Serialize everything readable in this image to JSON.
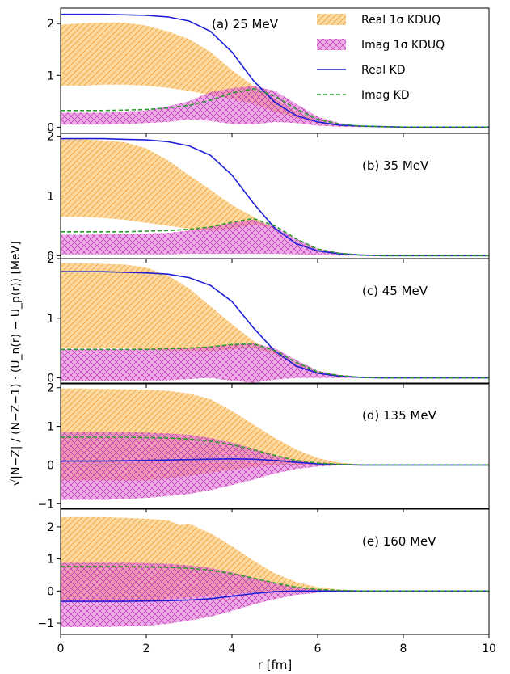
{
  "figure": {
    "xlabel": "r [fm]",
    "ylabel": "√|N−Z| / (N−Z−1) · (U_n(r) − U_p(r)) [MeV]",
    "legend": {
      "placement": "top-right of panel (a)",
      "entries": [
        {
          "label": "Real 1σ KDUQ",
          "style": "band",
          "color": "#fdb94d",
          "hatch": "//"
        },
        {
          "label": "Imag 1σ KDUQ",
          "style": "band",
          "color": "#e36ad8",
          "hatch": "xx"
        },
        {
          "label": "Real  KD",
          "style": "solid",
          "color": "#1f1fd6"
        },
        {
          "label": "Imag KD",
          "style": "dashed",
          "color": "#2a9a2a"
        }
      ]
    },
    "colors": {
      "real_band": "#fdb94d",
      "imag_band": "#e36ad8",
      "real_kd": "#1f1fd6",
      "imag_kd": "#2a9a2a"
    }
  },
  "chart_data": [
    {
      "type": "line",
      "panel_label": "(a) 25 MeV",
      "xlim": [
        0,
        10
      ],
      "ylim": [
        -0.12,
        2.3
      ],
      "yticks": [
        0,
        1,
        2
      ],
      "xticks": [
        0,
        2,
        4,
        6,
        8,
        10
      ],
      "real_band": {
        "x": [
          0,
          0.5,
          1,
          1.5,
          2,
          2.5,
          3,
          3.5,
          4,
          4.5,
          5,
          5.5,
          6,
          6.5,
          7,
          7.5,
          8,
          9,
          10
        ],
        "lower": [
          0.8,
          0.8,
          0.82,
          0.82,
          0.8,
          0.76,
          0.7,
          0.62,
          0.55,
          0.45,
          0.3,
          0.18,
          0.08,
          0.04,
          0.02,
          0.01,
          0,
          0,
          0
        ],
        "upper": [
          1.98,
          2.01,
          2.02,
          2.02,
          1.96,
          1.85,
          1.7,
          1.45,
          1.1,
          0.8,
          0.55,
          0.3,
          0.12,
          0.05,
          0.02,
          0.01,
          0,
          0,
          0
        ]
      },
      "imag_band": {
        "x": [
          0,
          0.5,
          1,
          1.5,
          2,
          2.5,
          3,
          3.5,
          4,
          4.5,
          5,
          5.5,
          6,
          6.5,
          7,
          7.5,
          8,
          9,
          10
        ],
        "lower": [
          0.05,
          0.05,
          0.05,
          0.06,
          0.08,
          0.1,
          0.15,
          0.12,
          0.06,
          0.05,
          0.1,
          0.08,
          0.03,
          0.01,
          0,
          0,
          0,
          0,
          0
        ],
        "upper": [
          0.28,
          0.28,
          0.28,
          0.3,
          0.32,
          0.4,
          0.5,
          0.68,
          0.75,
          0.8,
          0.7,
          0.45,
          0.2,
          0.08,
          0.02,
          0.01,
          0,
          0,
          0
        ]
      },
      "real_kd": {
        "x": [
          0,
          0.5,
          1,
          1.5,
          2,
          2.5,
          3,
          3.5,
          4,
          4.5,
          5,
          5.5,
          6,
          6.5,
          7,
          7.5,
          8,
          9,
          10
        ],
        "y": [
          2.18,
          2.18,
          2.18,
          2.17,
          2.16,
          2.13,
          2.05,
          1.85,
          1.45,
          0.9,
          0.48,
          0.22,
          0.1,
          0.04,
          0.02,
          0.01,
          0,
          0,
          0
        ]
      },
      "imag_kd": {
        "x": [
          0,
          0.5,
          1,
          1.5,
          2,
          2.5,
          3,
          3.5,
          4,
          4.5,
          5,
          5.5,
          6,
          6.5,
          7,
          7.5,
          8,
          9,
          10
        ],
        "y": [
          0.32,
          0.32,
          0.32,
          0.33,
          0.34,
          0.37,
          0.42,
          0.52,
          0.66,
          0.74,
          0.6,
          0.35,
          0.15,
          0.06,
          0.02,
          0.01,
          0,
          0,
          0
        ]
      }
    },
    {
      "type": "line",
      "panel_label": "(b) 35 MeV",
      "xlim": [
        0,
        10
      ],
      "ylim": [
        -0.05,
        2.05
      ],
      "yticks": [
        0,
        1,
        2
      ],
      "xticks": [
        0,
        2,
        4,
        6,
        8,
        10
      ],
      "real_band": {
        "x": [
          0,
          0.5,
          1,
          1.5,
          2,
          2.5,
          3,
          3.5,
          4,
          4.5,
          5,
          5.5,
          6,
          6.5,
          7,
          7.5,
          8,
          9,
          10
        ],
        "lower": [
          0.65,
          0.65,
          0.63,
          0.6,
          0.55,
          0.5,
          0.45,
          0.42,
          0.45,
          0.52,
          0.45,
          0.25,
          0.1,
          0.04,
          0.02,
          0.01,
          0,
          0,
          0
        ],
        "upper": [
          1.95,
          1.95,
          1.93,
          1.9,
          1.8,
          1.6,
          1.35,
          1.1,
          0.85,
          0.65,
          0.45,
          0.25,
          0.1,
          0.04,
          0.02,
          0.01,
          0,
          0,
          0
        ]
      },
      "imag_band": {
        "x": [
          0,
          0.5,
          1,
          1.5,
          2,
          2.5,
          3,
          3.5,
          4,
          4.5,
          5,
          5.5,
          6,
          6.5,
          7,
          7.5,
          8,
          9,
          10
        ],
        "lower": [
          0.02,
          0.02,
          0.02,
          0.02,
          0.02,
          0.02,
          0.03,
          0.03,
          0.03,
          0.03,
          0.03,
          0.02,
          0.01,
          0,
          0,
          0,
          0,
          0,
          0
        ],
        "upper": [
          0.35,
          0.35,
          0.36,
          0.36,
          0.37,
          0.38,
          0.42,
          0.48,
          0.55,
          0.6,
          0.48,
          0.28,
          0.12,
          0.05,
          0.02,
          0.01,
          0,
          0,
          0
        ]
      },
      "real_kd": {
        "x": [
          0,
          0.5,
          1,
          1.5,
          2,
          2.5,
          3,
          3.5,
          4,
          4.5,
          5,
          5.5,
          6,
          6.5,
          7,
          7.5,
          8,
          9,
          10
        ],
        "y": [
          1.96,
          1.96,
          1.96,
          1.95,
          1.94,
          1.91,
          1.84,
          1.68,
          1.35,
          0.88,
          0.46,
          0.2,
          0.08,
          0.03,
          0.01,
          0,
          0,
          0,
          0
        ]
      },
      "imag_kd": {
        "x": [
          0,
          0.5,
          1,
          1.5,
          2,
          2.5,
          3,
          3.5,
          4,
          4.5,
          5,
          5.5,
          6,
          6.5,
          7,
          7.5,
          8,
          9,
          10
        ],
        "y": [
          0.4,
          0.4,
          0.4,
          0.4,
          0.41,
          0.42,
          0.44,
          0.48,
          0.56,
          0.62,
          0.5,
          0.28,
          0.11,
          0.04,
          0.01,
          0,
          0,
          0,
          0
        ]
      }
    },
    {
      "type": "line",
      "panel_label": "(c) 45 MeV",
      "xlim": [
        0,
        10
      ],
      "ylim": [
        -0.1,
        2.0
      ],
      "yticks": [
        0,
        1,
        2
      ],
      "xticks": [
        0,
        2,
        4,
        6,
        8,
        10
      ],
      "real_band": {
        "x": [
          0,
          0.5,
          1,
          1.5,
          2,
          2.5,
          3,
          3.5,
          4,
          4.5,
          5,
          5.5,
          6,
          6.5,
          7,
          7.5,
          8,
          9,
          10
        ],
        "lower": [
          0.5,
          0.5,
          0.5,
          0.5,
          0.48,
          0.46,
          0.45,
          0.45,
          0.48,
          0.5,
          0.4,
          0.22,
          0.09,
          0.04,
          0.02,
          0.01,
          0,
          0,
          0
        ],
        "upper": [
          1.92,
          1.92,
          1.91,
          1.9,
          1.85,
          1.72,
          1.5,
          1.2,
          0.9,
          0.62,
          0.42,
          0.25,
          0.1,
          0.04,
          0.02,
          0.01,
          0,
          0,
          0
        ]
      },
      "imag_band": {
        "x": [
          0,
          0.5,
          1,
          1.5,
          2,
          2.5,
          3,
          3.5,
          4,
          4.5,
          5,
          5.5,
          6,
          6.5,
          7,
          7.5,
          8,
          9,
          10
        ],
        "lower": [
          -0.05,
          -0.05,
          -0.05,
          -0.05,
          -0.05,
          -0.04,
          -0.02,
          0,
          -0.05,
          -0.08,
          -0.03,
          0,
          0,
          0,
          0,
          0,
          0,
          0,
          0
        ],
        "upper": [
          0.48,
          0.48,
          0.48,
          0.48,
          0.48,
          0.49,
          0.5,
          0.53,
          0.56,
          0.58,
          0.5,
          0.3,
          0.12,
          0.05,
          0.02,
          0.01,
          0,
          0,
          0
        ]
      },
      "real_kd": {
        "x": [
          0,
          0.5,
          1,
          1.5,
          2,
          2.5,
          3,
          3.5,
          4,
          4.5,
          5,
          5.5,
          6,
          6.5,
          7,
          7.5,
          8,
          9,
          10
        ],
        "y": [
          1.78,
          1.78,
          1.78,
          1.77,
          1.76,
          1.74,
          1.68,
          1.55,
          1.28,
          0.84,
          0.45,
          0.2,
          0.08,
          0.03,
          0.01,
          0,
          0,
          0,
          0
        ]
      },
      "imag_kd": {
        "x": [
          0,
          0.5,
          1,
          1.5,
          2,
          2.5,
          3,
          3.5,
          4,
          4.5,
          5,
          5.5,
          6,
          6.5,
          7,
          7.5,
          8,
          9,
          10
        ],
        "y": [
          0.48,
          0.48,
          0.48,
          0.48,
          0.48,
          0.49,
          0.5,
          0.52,
          0.56,
          0.57,
          0.46,
          0.26,
          0.1,
          0.04,
          0.01,
          0,
          0,
          0,
          0
        ]
      }
    },
    {
      "type": "line",
      "panel_label": "(d) 135 MeV",
      "xlim": [
        0,
        10
      ],
      "ylim": [
        -1.12,
        2.12
      ],
      "yticks": [
        -1,
        0,
        1,
        2
      ],
      "xticks": [
        0,
        2,
        4,
        6,
        8,
        10
      ],
      "real_band": {
        "x": [
          0,
          0.5,
          1,
          1.5,
          2,
          2.5,
          3,
          3.5,
          4,
          4.5,
          5,
          5.5,
          6,
          6.5,
          7,
          7.5,
          8,
          9,
          10
        ],
        "lower": [
          -0.4,
          -0.4,
          -0.4,
          -0.4,
          -0.4,
          -0.35,
          -0.28,
          -0.2,
          -0.12,
          -0.05,
          0,
          0,
          0,
          0,
          0,
          0,
          0,
          0,
          0
        ],
        "upper": [
          1.98,
          1.98,
          1.97,
          1.96,
          1.95,
          1.92,
          1.85,
          1.7,
          1.4,
          1.05,
          0.7,
          0.4,
          0.18,
          0.06,
          0.02,
          0.01,
          0,
          0,
          0
        ]
      },
      "imag_band": {
        "x": [
          0,
          0.5,
          1,
          1.5,
          2,
          2.5,
          3,
          3.5,
          4,
          4.5,
          5,
          5.5,
          6,
          6.5,
          7,
          7.5,
          8,
          9,
          10
        ],
        "lower": [
          -0.9,
          -0.9,
          -0.9,
          -0.88,
          -0.85,
          -0.8,
          -0.75,
          -0.65,
          -0.52,
          -0.38,
          -0.22,
          -0.1,
          -0.04,
          -0.01,
          0,
          0,
          0,
          0,
          0
        ],
        "upper": [
          0.85,
          0.85,
          0.85,
          0.85,
          0.84,
          0.82,
          0.78,
          0.7,
          0.58,
          0.42,
          0.25,
          0.12,
          0.05,
          0.01,
          0,
          0,
          0,
          0,
          0
        ]
      },
      "real_kd": {
        "x": [
          0,
          0.5,
          1,
          1.5,
          2,
          2.5,
          3,
          3.5,
          4,
          4.5,
          5,
          5.5,
          6,
          6.5,
          7,
          7.5,
          8,
          9,
          10
        ],
        "y": [
          0.1,
          0.1,
          0.1,
          0.11,
          0.12,
          0.13,
          0.14,
          0.15,
          0.16,
          0.15,
          0.12,
          0.07,
          0.03,
          0.01,
          0,
          0,
          0,
          0,
          0
        ]
      },
      "imag_kd": {
        "x": [
          0,
          0.5,
          1,
          1.5,
          2,
          2.5,
          3,
          3.5,
          4,
          4.5,
          5,
          5.5,
          6,
          6.5,
          7,
          7.5,
          8,
          9,
          10
        ],
        "y": [
          0.72,
          0.72,
          0.72,
          0.72,
          0.71,
          0.7,
          0.67,
          0.62,
          0.52,
          0.4,
          0.25,
          0.12,
          0.05,
          0.02,
          0,
          0,
          0,
          0,
          0
        ]
      }
    },
    {
      "type": "line",
      "panel_label": "(e) 160 MeV",
      "xlim": [
        0,
        10
      ],
      "ylim": [
        -1.35,
        2.55
      ],
      "yticks": [
        -1,
        0,
        1,
        2
      ],
      "xticks": [
        0,
        2,
        4,
        6,
        8,
        10
      ],
      "real_band": {
        "x": [
          0,
          0.5,
          1,
          1.5,
          2,
          2.5,
          2.8,
          3.0,
          3.5,
          4,
          4.5,
          5,
          5.5,
          6,
          6.5,
          7,
          7.5,
          8,
          9,
          10
        ],
        "lower": [
          -0.3,
          -0.3,
          -0.3,
          -0.3,
          -0.28,
          -0.25,
          -0.22,
          -0.2,
          -0.15,
          -0.1,
          -0.05,
          -0.02,
          0,
          0,
          0,
          0,
          0,
          0,
          0,
          0
        ],
        "upper": [
          2.3,
          2.3,
          2.3,
          2.28,
          2.25,
          2.2,
          2.05,
          2.1,
          1.8,
          1.4,
          0.95,
          0.55,
          0.28,
          0.12,
          0.05,
          0.02,
          0.01,
          0,
          0,
          0
        ]
      },
      "imag_band": {
        "x": [
          0,
          0.5,
          1,
          1.5,
          2,
          2.5,
          3,
          3.5,
          4,
          4.5,
          5,
          5.5,
          6,
          6.5,
          7,
          7.5,
          8,
          9,
          10
        ],
        "lower": [
          -1.12,
          -1.12,
          -1.12,
          -1.1,
          -1.08,
          -1.02,
          -0.92,
          -0.8,
          -0.62,
          -0.42,
          -0.25,
          -0.12,
          -0.05,
          -0.01,
          0,
          0,
          0,
          0,
          0
        ],
        "upper": [
          0.88,
          0.88,
          0.88,
          0.88,
          0.87,
          0.85,
          0.8,
          0.72,
          0.58,
          0.42,
          0.25,
          0.12,
          0.05,
          0.01,
          0,
          0,
          0,
          0,
          0
        ]
      },
      "real_kd": {
        "x": [
          0,
          0.5,
          1,
          1.5,
          2,
          2.5,
          3,
          3.5,
          4,
          4.5,
          5,
          5.5,
          6,
          6.5,
          7,
          7.5,
          8,
          9,
          10
        ],
        "y": [
          -0.32,
          -0.32,
          -0.32,
          -0.32,
          -0.31,
          -0.3,
          -0.28,
          -0.24,
          -0.16,
          -0.08,
          -0.02,
          0,
          0,
          0,
          0,
          0,
          0,
          0,
          0
        ]
      },
      "imag_kd": {
        "x": [
          0,
          0.5,
          1,
          1.5,
          2,
          2.5,
          3,
          3.5,
          4,
          4.5,
          5,
          5.5,
          6,
          6.5,
          7,
          7.5,
          8,
          9,
          10
        ],
        "y": [
          0.76,
          0.76,
          0.76,
          0.76,
          0.75,
          0.74,
          0.71,
          0.65,
          0.54,
          0.4,
          0.25,
          0.12,
          0.05,
          0.02,
          0,
          0,
          0,
          0,
          0
        ]
      }
    }
  ]
}
